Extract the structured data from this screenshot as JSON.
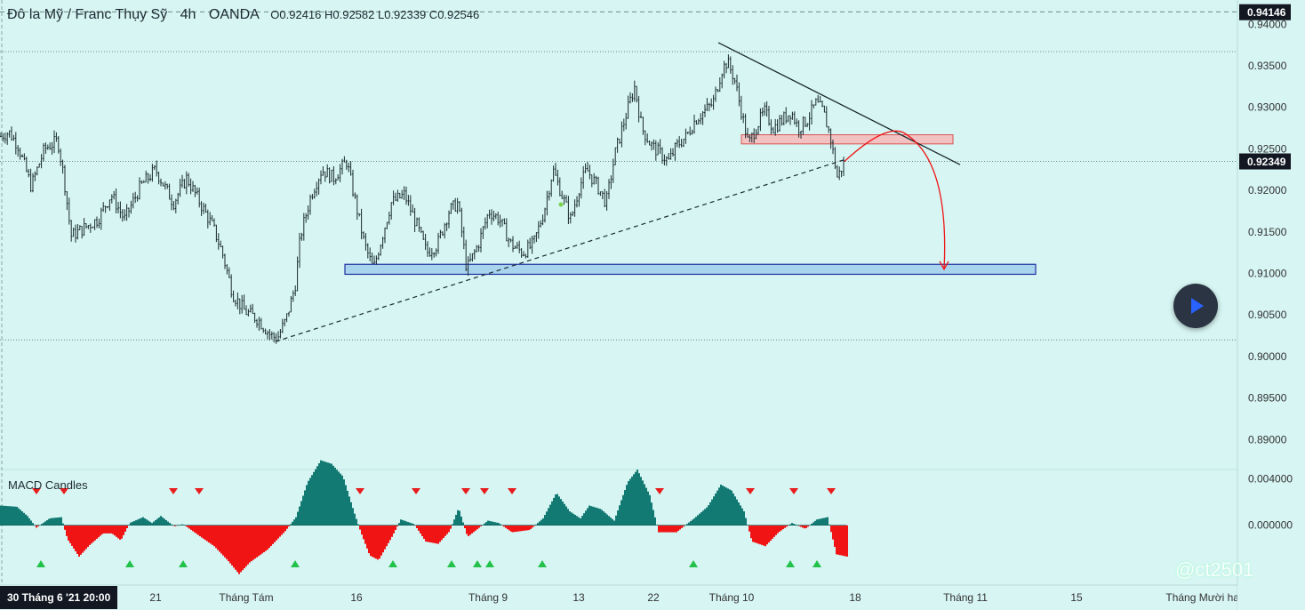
{
  "header": {
    "symbol": "Đô la Mỹ / Franc Thụy Sỹ",
    "timeframe": "4h",
    "source": "OANDA",
    "ohlc": "O0.92416 H0.92582 L0.92339 C0.92546"
  },
  "macd_title": "MACD Candles",
  "watermark": "@ct2501",
  "date_label": "30 Tháng 6 '21   20:00",
  "colors": {
    "background": "#d6f5f3",
    "teal": "#137a73",
    "red": "#f01414",
    "support_zone": "#a8d4ee",
    "resistance_zone": "#f2c2c2",
    "signal_up": "#22c24a",
    "signal_down": "#e81c1c"
  },
  "chart_data": [
    {
      "type": "candlestick",
      "price_axis": {
        "ylim": [
          0.8865,
          0.9425
        ],
        "ticks": [
          "0.94000",
          "0.93500",
          "0.93000",
          "0.92500",
          "0.92000",
          "0.91500",
          "0.91000",
          "0.90500",
          "0.90000",
          "0.89500",
          "0.89000"
        ],
        "tick_values": [
          0.94,
          0.935,
          0.93,
          0.925,
          0.92,
          0.915,
          0.91,
          0.905,
          0.9,
          0.895,
          0.89
        ],
        "current_high_label": "0.94146",
        "current_high_value": 0.94146,
        "last_price_label": "0.92349",
        "last_price_value": 0.92349
      },
      "time_axis": {
        "labels": [
          "21",
          "Tháng Tám",
          "16",
          "Tháng 9",
          "13",
          "22",
          "Tháng 10",
          "18",
          "Tháng 11",
          "15",
          "Tháng Mười hai"
        ]
      },
      "series_path": [
        [
          0,
          0.9265
        ],
        [
          10,
          0.927
        ],
        [
          20,
          0.9255
        ],
        [
          35,
          0.9205
        ],
        [
          50,
          0.925
        ],
        [
          65,
          0.926
        ],
        [
          72,
          0.9215
        ],
        [
          80,
          0.9145
        ],
        [
          95,
          0.9155
        ],
        [
          110,
          0.9165
        ],
        [
          125,
          0.9195
        ],
        [
          140,
          0.9165
        ],
        [
          158,
          0.9205
        ],
        [
          175,
          0.9225
        ],
        [
          195,
          0.9185
        ],
        [
          210,
          0.9215
        ],
        [
          225,
          0.9185
        ],
        [
          240,
          0.9155
        ],
        [
          250,
          0.9125
        ],
        [
          262,
          0.9075
        ],
        [
          275,
          0.9055
        ],
        [
          290,
          0.9045
        ],
        [
          305,
          0.9025
        ],
        [
          312,
          0.9022
        ],
        [
          322,
          0.9045
        ],
        [
          332,
          0.9085
        ],
        [
          338,
          0.9145
        ],
        [
          350,
          0.9195
        ],
        [
          362,
          0.9225
        ],
        [
          375,
          0.9215
        ],
        [
          390,
          0.9235
        ],
        [
          400,
          0.9185
        ],
        [
          410,
          0.9135
        ],
        [
          420,
          0.9105
        ],
        [
          430,
          0.9145
        ],
        [
          440,
          0.9185
        ],
        [
          455,
          0.9195
        ],
        [
          470,
          0.9155
        ],
        [
          480,
          0.9125
        ],
        [
          492,
          0.9135
        ],
        [
          505,
          0.9175
        ],
        [
          515,
          0.9185
        ],
        [
          525,
          0.9105
        ],
        [
          538,
          0.9135
        ],
        [
          550,
          0.9175
        ],
        [
          562,
          0.9165
        ],
        [
          575,
          0.9135
        ],
        [
          588,
          0.9125
        ],
        [
          600,
          0.9135
        ],
        [
          612,
          0.9175
        ],
        [
          622,
          0.9225
        ],
        [
          632,
          0.9195
        ],
        [
          642,
          0.9165
        ],
        [
          652,
          0.9205
        ],
        [
          660,
          0.9225
        ],
        [
          672,
          0.9205
        ],
        [
          682,
          0.9185
        ],
        [
          692,
          0.9245
        ],
        [
          700,
          0.9275
        ],
        [
          708,
          0.9305
        ],
        [
          714,
          0.9325
        ],
        [
          722,
          0.9275
        ],
        [
          732,
          0.9255
        ],
        [
          742,
          0.9245
        ],
        [
          752,
          0.9235
        ],
        [
          762,
          0.9255
        ],
        [
          772,
          0.9265
        ],
        [
          782,
          0.9285
        ],
        [
          792,
          0.9295
        ],
        [
          802,
          0.9305
        ],
        [
          812,
          0.9345
        ],
        [
          818,
          0.9355
        ],
        [
          826,
          0.9335
        ],
        [
          834,
          0.9295
        ],
        [
          842,
          0.9255
        ],
        [
          850,
          0.9275
        ],
        [
          860,
          0.9295
        ],
        [
          870,
          0.9275
        ],
        [
          880,
          0.9285
        ],
        [
          890,
          0.9295
        ],
        [
          898,
          0.9275
        ],
        [
          908,
          0.9285
        ],
        [
          918,
          0.9305
        ],
        [
          926,
          0.9295
        ],
        [
          934,
          0.9265
        ],
        [
          942,
          0.9215
        ],
        [
          950,
          0.9235
        ]
      ],
      "drawings": {
        "support_zone": {
          "x_range": [
            388,
            1165
          ],
          "price_range": [
            0.9099,
            0.9111
          ]
        },
        "resistance_zone": {
          "x_range": [
            834,
            1072
          ],
          "price_range": [
            0.9256,
            0.9267
          ]
        },
        "rising_trendline": {
          "from": [
            310,
            0.9018
          ],
          "to": [
            950,
            0.9237
          ]
        },
        "falling_trendline": {
          "from": [
            808,
            0.9378
          ],
          "to": [
            1080,
            0.9231
          ]
        },
        "forecast_arrow": {
          "from": [
            950,
            0.9235
          ],
          "peak": [
            1005,
            0.9265
          ],
          "to": [
            1062,
            0.9105
          ]
        }
      }
    },
    {
      "type": "macd_histogram",
      "title": "MACD Candles",
      "ylim": [
        -0.005,
        0.0045
      ],
      "ticks": [
        "0.004000",
        "0.000000"
      ],
      "tick_values": [
        0.004,
        0.0
      ],
      "envelope": [
        [
          0,
          0.0017
        ],
        [
          18,
          0.0016
        ],
        [
          30,
          0.0008
        ],
        [
          40,
          -0.0002
        ],
        [
          55,
          0.0006
        ],
        [
          68,
          0.0007
        ],
        [
          75,
          -0.0012
        ],
        [
          88,
          -0.0027
        ],
        [
          100,
          -0.0017
        ],
        [
          115,
          -0.0007
        ],
        [
          125,
          -0.0007
        ],
        [
          135,
          -0.0013
        ],
        [
          145,
          0.0002
        ],
        [
          160,
          0.0007
        ],
        [
          170,
          0.0002
        ],
        [
          180,
          0.0008
        ],
        [
          195,
          -0.0001
        ],
        [
          205,
          0.0001
        ],
        [
          225,
          -0.001
        ],
        [
          240,
          -0.0018
        ],
        [
          255,
          -0.003
        ],
        [
          268,
          -0.0042
        ],
        [
          280,
          -0.0032
        ],
        [
          300,
          -0.0021
        ],
        [
          320,
          -0.0005
        ],
        [
          332,
          0.0007
        ],
        [
          345,
          0.0037
        ],
        [
          360,
          0.0056
        ],
        [
          372,
          0.0053
        ],
        [
          385,
          0.0042
        ],
        [
          398,
          0.001
        ],
        [
          405,
          -0.0006
        ],
        [
          415,
          -0.0026
        ],
        [
          425,
          -0.003
        ],
        [
          440,
          -0.001
        ],
        [
          450,
          0.0005
        ],
        [
          465,
          0.0001
        ],
        [
          478,
          -0.0014
        ],
        [
          492,
          -0.0016
        ],
        [
          505,
          -0.0005
        ],
        [
          515,
          0.0015
        ],
        [
          525,
          -0.001
        ],
        [
          535,
          -0.0004
        ],
        [
          548,
          0.0004
        ],
        [
          560,
          0.0002
        ],
        [
          575,
          -0.0006
        ],
        [
          595,
          -0.0004
        ],
        [
          610,
          0.0006
        ],
        [
          625,
          0.0028
        ],
        [
          640,
          0.0012
        ],
        [
          652,
          0.0006
        ],
        [
          662,
          0.0017
        ],
        [
          675,
          0.0014
        ],
        [
          690,
          0.0004
        ],
        [
          705,
          0.0037
        ],
        [
          716,
          0.0048
        ],
        [
          730,
          0.0026
        ],
        [
          740,
          -0.0006
        ],
        [
          760,
          -0.0006
        ],
        [
          780,
          0.0006
        ],
        [
          795,
          0.0016
        ],
        [
          810,
          0.0035
        ],
        [
          822,
          0.003
        ],
        [
          836,
          0.0012
        ],
        [
          845,
          -0.0014
        ],
        [
          860,
          -0.0018
        ],
        [
          875,
          -0.0006
        ],
        [
          890,
          0.0002
        ],
        [
          905,
          -0.0003
        ],
        [
          918,
          0.0005
        ],
        [
          930,
          0.0007
        ],
        [
          940,
          -0.0025
        ],
        [
          952,
          -0.0027
        ]
      ],
      "down_signals_x": [
        41,
        72,
        195,
        224,
        405,
        468,
        524,
        545,
        576,
        742,
        844,
        893,
        935
      ],
      "up_signals_x": [
        46,
        146,
        206,
        332,
        442,
        508,
        537,
        551,
        610,
        780,
        889,
        919
      ]
    }
  ]
}
